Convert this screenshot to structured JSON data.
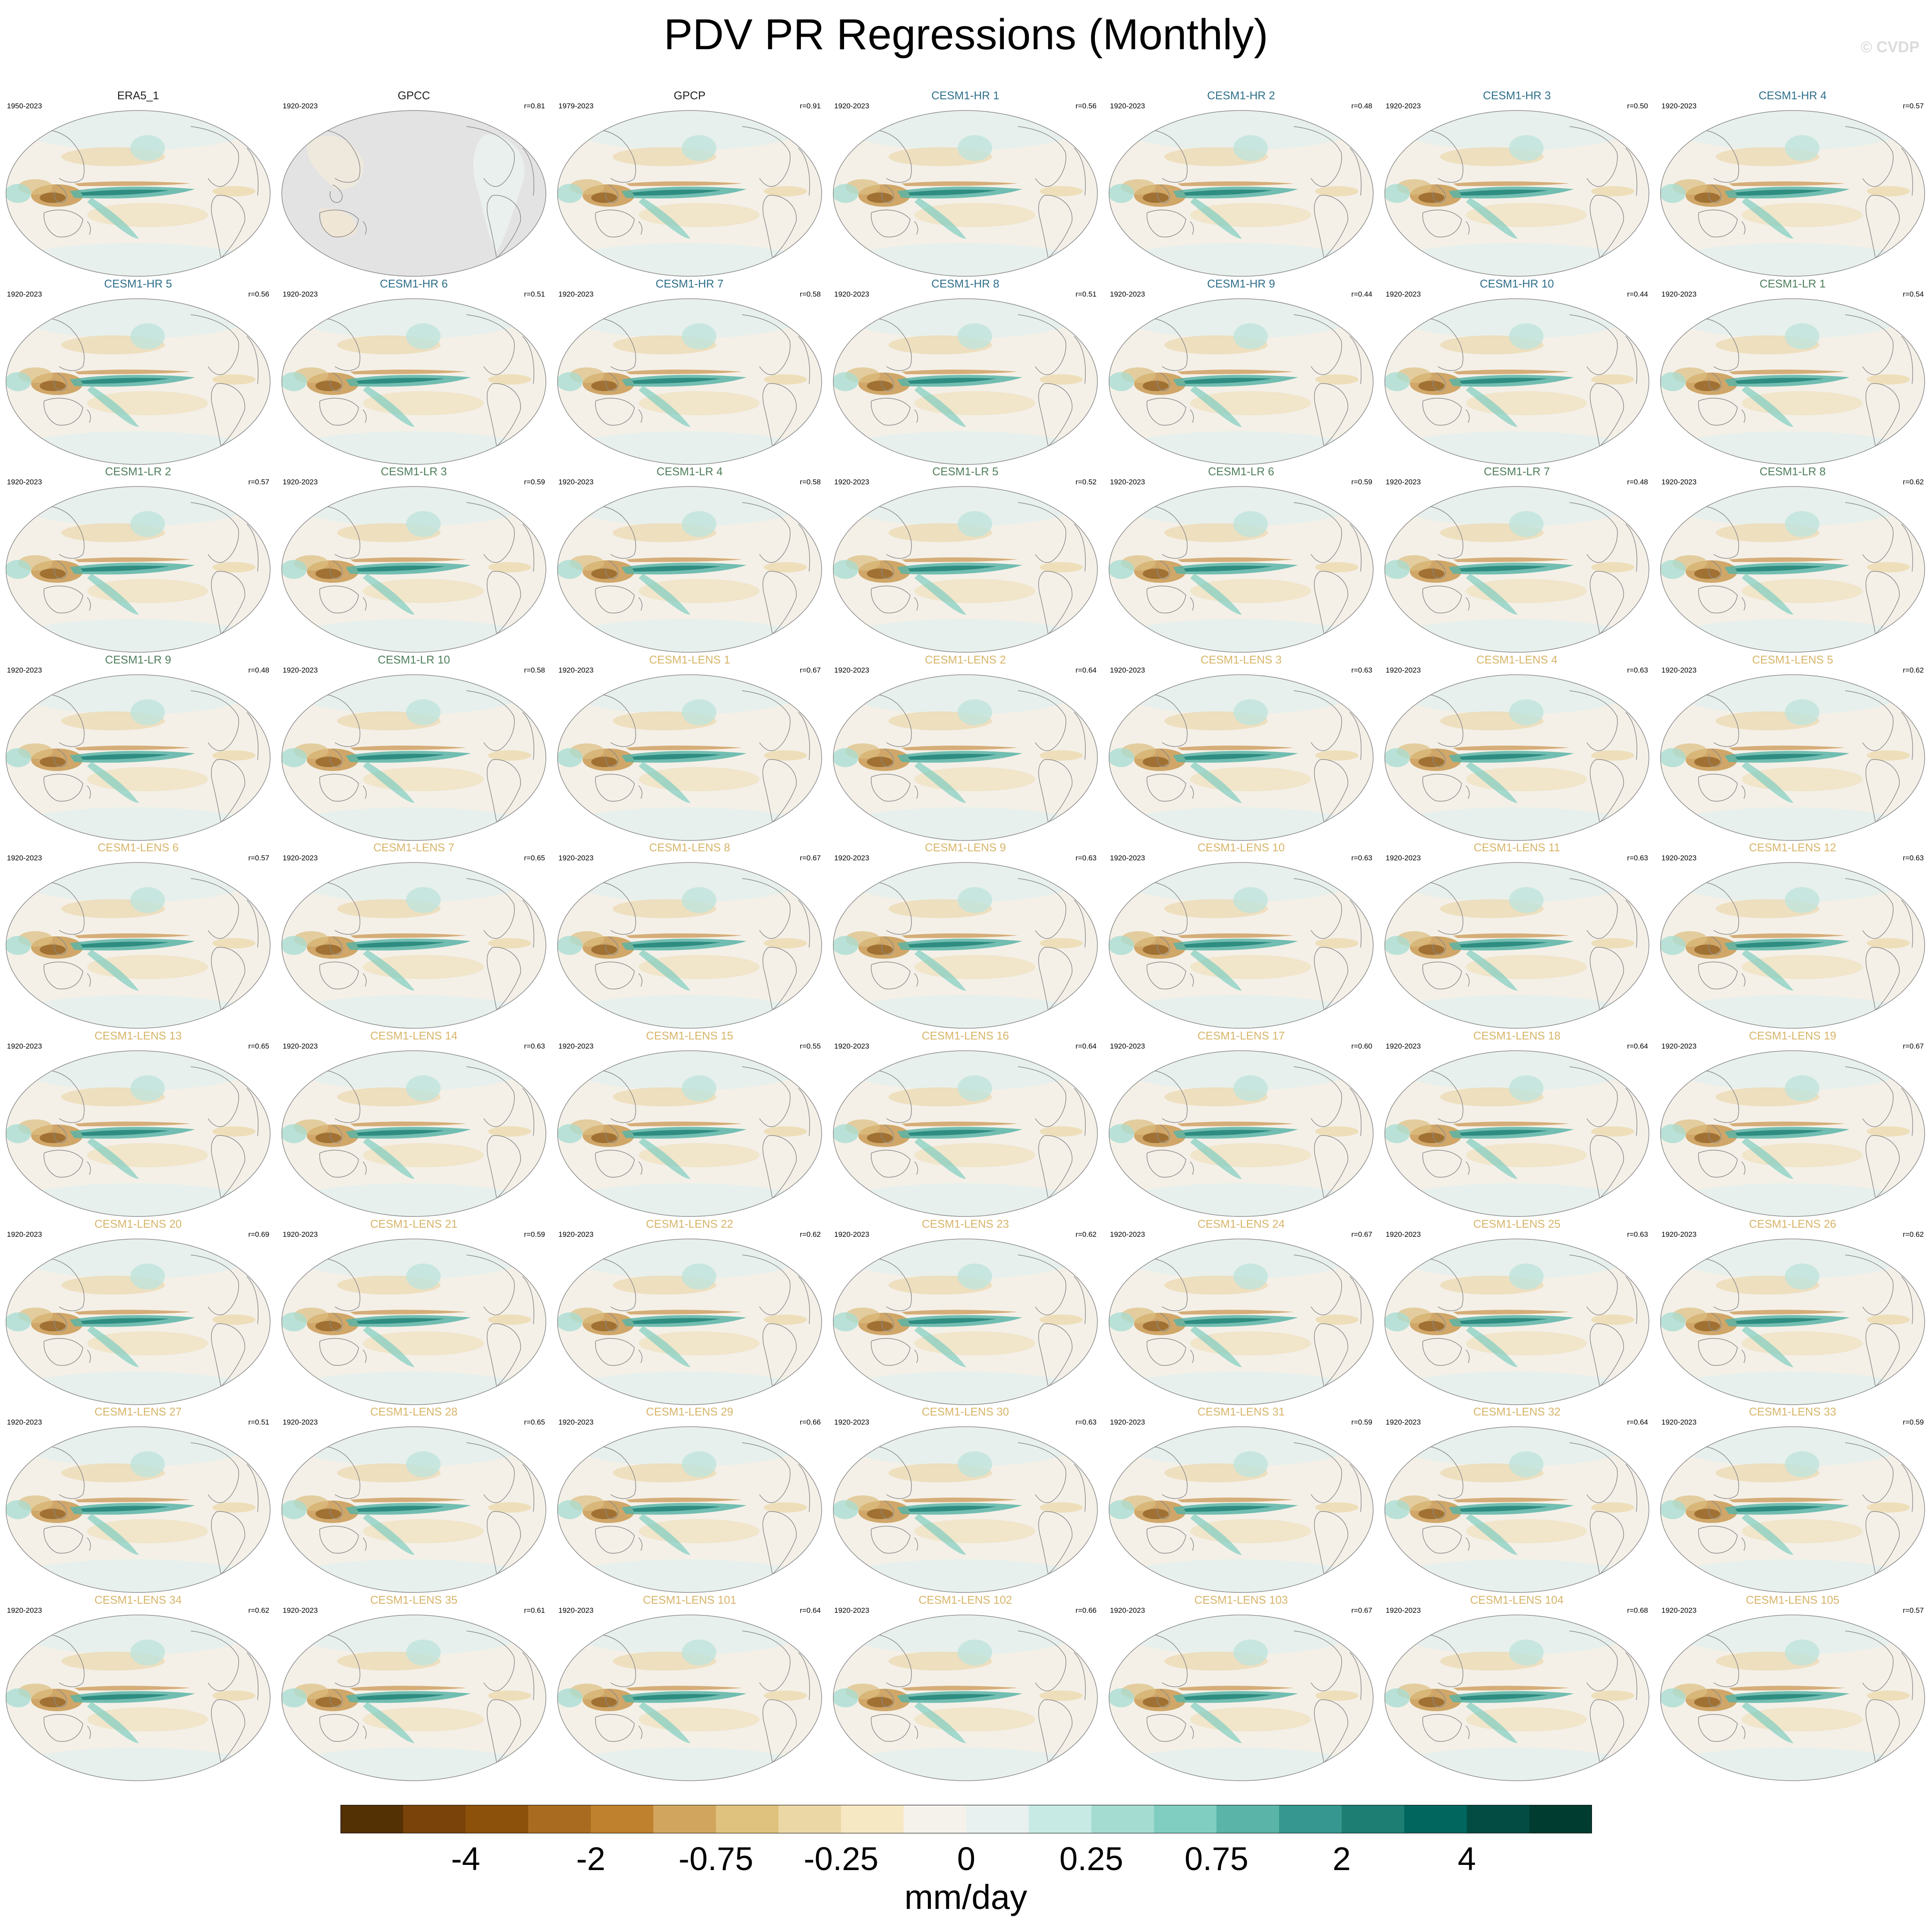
{
  "title": "PDV PR Regressions (Monthly)",
  "watermark": "© CVDP",
  "colors": {
    "observations": "#222222",
    "cesm1_hr": "#2f6f8a",
    "cesm1_lr": "#4f7f5c",
    "cesm1_lens": "#d8b56a"
  },
  "panels": [
    {
      "title": "ERA5_1",
      "years": "1950-2023",
      "r": "",
      "group": "obs"
    },
    {
      "title": "GPCC",
      "years": "1920-2023",
      "r": "r=0.81",
      "group": "obs",
      "masked": true
    },
    {
      "title": "GPCP",
      "years": "1979-2023",
      "r": "r=0.91",
      "group": "obs"
    },
    {
      "title": "CESM1-HR 1",
      "years": "1920-2023",
      "r": "r=0.56",
      "group": "hr"
    },
    {
      "title": "CESM1-HR 2",
      "years": "1920-2023",
      "r": "r=0.48",
      "group": "hr"
    },
    {
      "title": "CESM1-HR 3",
      "years": "1920-2023",
      "r": "r=0.50",
      "group": "hr"
    },
    {
      "title": "CESM1-HR 4",
      "years": "1920-2023",
      "r": "r=0.57",
      "group": "hr"
    },
    {
      "title": "CESM1-HR 5",
      "years": "1920-2023",
      "r": "r=0.56",
      "group": "hr"
    },
    {
      "title": "CESM1-HR 6",
      "years": "1920-2023",
      "r": "r=0.51",
      "group": "hr"
    },
    {
      "title": "CESM1-HR 7",
      "years": "1920-2023",
      "r": "r=0.58",
      "group": "hr"
    },
    {
      "title": "CESM1-HR 8",
      "years": "1920-2023",
      "r": "r=0.51",
      "group": "hr"
    },
    {
      "title": "CESM1-HR 9",
      "years": "1920-2023",
      "r": "r=0.44",
      "group": "hr"
    },
    {
      "title": "CESM1-HR 10",
      "years": "1920-2023",
      "r": "r=0.44",
      "group": "hr"
    },
    {
      "title": "CESM1-LR 1",
      "years": "1920-2023",
      "r": "r=0.54",
      "group": "lr"
    },
    {
      "title": "CESM1-LR 2",
      "years": "1920-2023",
      "r": "r=0.57",
      "group": "lr"
    },
    {
      "title": "CESM1-LR 3",
      "years": "1920-2023",
      "r": "r=0.59",
      "group": "lr"
    },
    {
      "title": "CESM1-LR 4",
      "years": "1920-2023",
      "r": "r=0.58",
      "group": "lr"
    },
    {
      "title": "CESM1-LR 5",
      "years": "1920-2023",
      "r": "r=0.52",
      "group": "lr"
    },
    {
      "title": "CESM1-LR 6",
      "years": "1920-2023",
      "r": "r=0.59",
      "group": "lr"
    },
    {
      "title": "CESM1-LR 7",
      "years": "1920-2023",
      "r": "r=0.48",
      "group": "lr"
    },
    {
      "title": "CESM1-LR 8",
      "years": "1920-2023",
      "r": "r=0.62",
      "group": "lr"
    },
    {
      "title": "CESM1-LR 9",
      "years": "1920-2023",
      "r": "r=0.48",
      "group": "lr"
    },
    {
      "title": "CESM1-LR 10",
      "years": "1920-2023",
      "r": "r=0.58",
      "group": "lr"
    },
    {
      "title": "CESM1-LENS 1",
      "years": "1920-2023",
      "r": "r=0.67",
      "group": "lens"
    },
    {
      "title": "CESM1-LENS 2",
      "years": "1920-2023",
      "r": "r=0.64",
      "group": "lens"
    },
    {
      "title": "CESM1-LENS 3",
      "years": "1920-2023",
      "r": "r=0.63",
      "group": "lens"
    },
    {
      "title": "CESM1-LENS 4",
      "years": "1920-2023",
      "r": "r=0.63",
      "group": "lens"
    },
    {
      "title": "CESM1-LENS 5",
      "years": "1920-2023",
      "r": "r=0.62",
      "group": "lens"
    },
    {
      "title": "CESM1-LENS 6",
      "years": "1920-2023",
      "r": "r=0.57",
      "group": "lens"
    },
    {
      "title": "CESM1-LENS 7",
      "years": "1920-2023",
      "r": "r=0.65",
      "group": "lens"
    },
    {
      "title": "CESM1-LENS 8",
      "years": "1920-2023",
      "r": "r=0.67",
      "group": "lens"
    },
    {
      "title": "CESM1-LENS 9",
      "years": "1920-2023",
      "r": "r=0.63",
      "group": "lens"
    },
    {
      "title": "CESM1-LENS 10",
      "years": "1920-2023",
      "r": "r=0.63",
      "group": "lens"
    },
    {
      "title": "CESM1-LENS 11",
      "years": "1920-2023",
      "r": "r=0.63",
      "group": "lens"
    },
    {
      "title": "CESM1-LENS 12",
      "years": "1920-2023",
      "r": "r=0.63",
      "group": "lens"
    },
    {
      "title": "CESM1-LENS 13",
      "years": "1920-2023",
      "r": "r=0.65",
      "group": "lens"
    },
    {
      "title": "CESM1-LENS 14",
      "years": "1920-2023",
      "r": "r=0.63",
      "group": "lens"
    },
    {
      "title": "CESM1-LENS 15",
      "years": "1920-2023",
      "r": "r=0.55",
      "group": "lens"
    },
    {
      "title": "CESM1-LENS 16",
      "years": "1920-2023",
      "r": "r=0.64",
      "group": "lens"
    },
    {
      "title": "CESM1-LENS 17",
      "years": "1920-2023",
      "r": "r=0.60",
      "group": "lens"
    },
    {
      "title": "CESM1-LENS 18",
      "years": "1920-2023",
      "r": "r=0.64",
      "group": "lens"
    },
    {
      "title": "CESM1-LENS 19",
      "years": "1920-2023",
      "r": "r=0.67",
      "group": "lens"
    },
    {
      "title": "CESM1-LENS 20",
      "years": "1920-2023",
      "r": "r=0.69",
      "group": "lens"
    },
    {
      "title": "CESM1-LENS 21",
      "years": "1920-2023",
      "r": "r=0.59",
      "group": "lens"
    },
    {
      "title": "CESM1-LENS 22",
      "years": "1920-2023",
      "r": "r=0.62",
      "group": "lens"
    },
    {
      "title": "CESM1-LENS 23",
      "years": "1920-2023",
      "r": "r=0.62",
      "group": "lens"
    },
    {
      "title": "CESM1-LENS 24",
      "years": "1920-2023",
      "r": "r=0.67",
      "group": "lens"
    },
    {
      "title": "CESM1-LENS 25",
      "years": "1920-2023",
      "r": "r=0.63",
      "group": "lens"
    },
    {
      "title": "CESM1-LENS 26",
      "years": "1920-2023",
      "r": "r=0.62",
      "group": "lens"
    },
    {
      "title": "CESM1-LENS 27",
      "years": "1920-2023",
      "r": "r=0.51",
      "group": "lens"
    },
    {
      "title": "CESM1-LENS 28",
      "years": "1920-2023",
      "r": "r=0.65",
      "group": "lens"
    },
    {
      "title": "CESM1-LENS 29",
      "years": "1920-2023",
      "r": "r=0.66",
      "group": "lens"
    },
    {
      "title": "CESM1-LENS 30",
      "years": "1920-2023",
      "r": "r=0.63",
      "group": "lens"
    },
    {
      "title": "CESM1-LENS 31",
      "years": "1920-2023",
      "r": "r=0.59",
      "group": "lens"
    },
    {
      "title": "CESM1-LENS 32",
      "years": "1920-2023",
      "r": "r=0.64",
      "group": "lens"
    },
    {
      "title": "CESM1-LENS 33",
      "years": "1920-2023",
      "r": "r=0.59",
      "group": "lens"
    },
    {
      "title": "CESM1-LENS 34",
      "years": "1920-2023",
      "r": "r=0.62",
      "group": "lens"
    },
    {
      "title": "CESM1-LENS 35",
      "years": "1920-2023",
      "r": "r=0.61",
      "group": "lens"
    },
    {
      "title": "CESM1-LENS 101",
      "years": "1920-2023",
      "r": "r=0.64",
      "group": "lens"
    },
    {
      "title": "CESM1-LENS 102",
      "years": "1920-2023",
      "r": "r=0.66",
      "group": "lens"
    },
    {
      "title": "CESM1-LENS 103",
      "years": "1920-2023",
      "r": "r=0.67",
      "group": "lens"
    },
    {
      "title": "CESM1-LENS 104",
      "years": "1920-2023",
      "r": "r=0.68",
      "group": "lens"
    },
    {
      "title": "CESM1-LENS 105",
      "years": "1920-2023",
      "r": "r=0.57",
      "group": "lens"
    }
  ],
  "colorbar": {
    "units": "mm/day",
    "labels": [
      "-4",
      "-2",
      "-0.75",
      "-0.25",
      "0",
      "0.25",
      "0.75",
      "2",
      "4"
    ],
    "colors": [
      "#543005",
      "#7a4309",
      "#8c510a",
      "#a86b20",
      "#bf812d",
      "#d2a55e",
      "#dfc27d",
      "#ebd7a6",
      "#f6e8c3",
      "#f5f2ec",
      "#e8f1ef",
      "#c7eae5",
      "#a5dcd2",
      "#80cdc1",
      "#5ab4a7",
      "#35978f",
      "#1d7f74",
      "#01665e",
      "#024c43",
      "#003c30"
    ]
  }
}
